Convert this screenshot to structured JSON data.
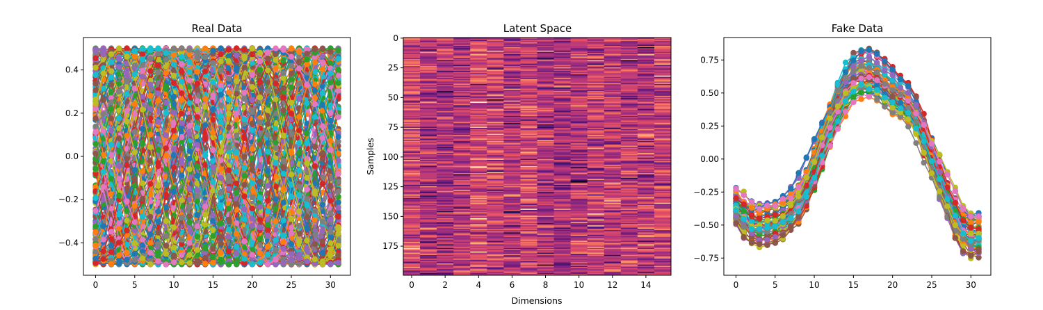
{
  "chart_data": [
    {
      "type": "line",
      "title": "Real Data",
      "xlabel": "",
      "ylabel": "",
      "x_ticks": [
        0,
        5,
        10,
        15,
        20,
        25,
        30
      ],
      "y_ticks": [
        0.4,
        0.2,
        0.0,
        -0.2,
        -0.4
      ],
      "y_tick_labels": [
        "0.4",
        "0.2",
        "0.0",
        "−0.2",
        "−0.4"
      ],
      "xlim": [
        -1.55,
        32.55
      ],
      "ylim": [
        -0.55,
        0.55
      ],
      "markers": true,
      "num_series": 200,
      "points_per_series": 32,
      "series_form": "0.5*sin(2*pi*x/32*frequency + phase) with randomly varying frequency and phase, values bounded to [-0.5, 0.5]",
      "grid": false,
      "legend": "none"
    },
    {
      "type": "heatmap",
      "title": "Latent Space",
      "xlabel": "Dimensions",
      "ylabel": "Samples",
      "x_ticks": [
        0,
        2,
        4,
        6,
        8,
        10,
        12,
        14
      ],
      "y_ticks": [
        0,
        25,
        50,
        75,
        100,
        125,
        150,
        175
      ],
      "rows": 200,
      "columns": 16,
      "colormap": "magma-like (dark purple to light orange)",
      "values": "random latent codes, mostly mid-range magenta/red",
      "grid": false,
      "legend": "none"
    },
    {
      "type": "line",
      "title": "Fake Data",
      "xlabel": "",
      "ylabel": "",
      "x_ticks": [
        0,
        5,
        10,
        15,
        20,
        25,
        30
      ],
      "y_ticks": [
        0.75,
        0.5,
        0.25,
        0.0,
        -0.25,
        -0.5,
        -0.75
      ],
      "y_tick_labels": [
        "0.75",
        "0.50",
        "0.25",
        "0.00",
        "−0.25",
        "−0.50",
        "−0.75"
      ],
      "xlim": [
        -1.55,
        32.55
      ],
      "ylim": [
        -0.88,
        0.92
      ],
      "markers": true,
      "num_series": 60,
      "points_per_series": 32,
      "base_curve": [
        -0.35,
        -0.45,
        -0.5,
        -0.52,
        -0.5,
        -0.48,
        -0.45,
        -0.4,
        -0.32,
        -0.2,
        -0.05,
        0.12,
        0.28,
        0.42,
        0.55,
        0.62,
        0.65,
        0.64,
        0.62,
        0.55,
        0.5,
        0.45,
        0.4,
        0.3,
        0.15,
        0.0,
        -0.15,
        -0.3,
        -0.45,
        -0.55,
        -0.6,
        -0.58
      ],
      "grid": false,
      "legend": "none"
    }
  ],
  "palette": [
    "#1f77b4",
    "#ff7f0e",
    "#2ca02c",
    "#d62728",
    "#9467bd",
    "#8c564b",
    "#e377c2",
    "#7f7f7f",
    "#bcbd22",
    "#17becf"
  ]
}
